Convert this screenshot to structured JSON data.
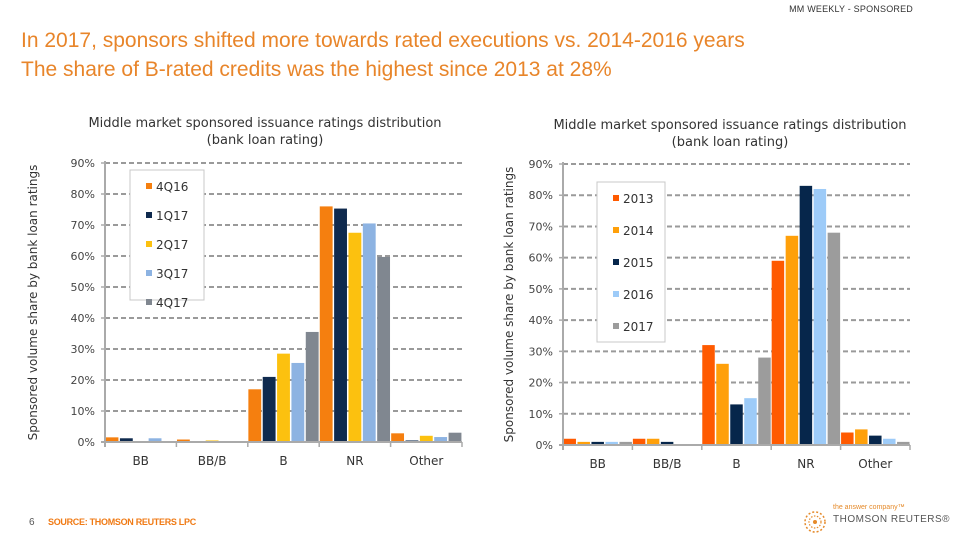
{
  "header": {
    "tag": "MM WEEKLY - SPONSORED",
    "headline_line1": "In 2017, sponsors shifted more towards rated executions vs. 2014-2016 years",
    "headline_line2": "The share of B-rated credits was the highest since 2013 at 28%"
  },
  "footer": {
    "page_number": "6",
    "source": "SOURCE: THOMSON REUTERS LPC",
    "brand_tagline": "the answer company™",
    "brand_name": "THOMSON REUTERS®"
  },
  "chart_data": [
    {
      "type": "bar",
      "title": "Middle market sponsored issuance ratings distribution",
      "subtitle": "(bank loan rating)",
      "xlabel": "",
      "ylabel": "Sponsored volume share by bank loan ratings",
      "ylim": [
        0,
        90
      ],
      "yticks": [
        "0%",
        "10%",
        "20%",
        "30%",
        "40%",
        "50%",
        "60%",
        "70%",
        "80%",
        "90%"
      ],
      "grid": true,
      "legend_position": "top-left",
      "categories": [
        "BB",
        "BB/B",
        "B",
        "NR",
        "Other"
      ],
      "series": [
        {
          "name": "4Q16",
          "color": "#f57f0f",
          "values": [
            1.5,
            0.8,
            17.0,
            76.0,
            2.8
          ]
        },
        {
          "name": "1Q17",
          "color": "#0f2a4e",
          "values": [
            1.2,
            0.0,
            21.0,
            75.3,
            0.5
          ]
        },
        {
          "name": "2Q17",
          "color": "#fcc10f",
          "values": [
            0.0,
            0.5,
            28.5,
            67.5,
            2.0
          ]
        },
        {
          "name": "3Q17",
          "color": "#8db3e2",
          "values": [
            1.2,
            0.0,
            25.5,
            70.5,
            1.6
          ]
        },
        {
          "name": "4Q17",
          "color": "#808790",
          "values": [
            0.0,
            0.0,
            35.5,
            59.7,
            3.0
          ]
        }
      ]
    },
    {
      "type": "bar",
      "title": "Middle market sponsored issuance ratings distribution",
      "subtitle": "(bank loan rating)",
      "xlabel": "",
      "ylabel": "Sponsored volume share by bank loan ratings",
      "ylim": [
        0,
        90
      ],
      "yticks": [
        "0%",
        "10%",
        "20%",
        "30%",
        "40%",
        "50%",
        "60%",
        "70%",
        "80%",
        "90%"
      ],
      "grid": true,
      "legend_position": "top-left",
      "categories": [
        "BB",
        "BB/B",
        "B",
        "NR",
        "Other"
      ],
      "series": [
        {
          "name": "2013",
          "color": "#ff5a00",
          "values": [
            2,
            2,
            32,
            59,
            4
          ]
        },
        {
          "name": "2014",
          "color": "#ffa00a",
          "values": [
            1,
            2,
            26,
            67,
            5
          ]
        },
        {
          "name": "2015",
          "color": "#06264b",
          "values": [
            1,
            1,
            13,
            83,
            3
          ]
        },
        {
          "name": "2016",
          "color": "#9dcbf8",
          "values": [
            1,
            0,
            15,
            82,
            2
          ]
        },
        {
          "name": "2017",
          "color": "#9c9c9c",
          "values": [
            1,
            0,
            28,
            68,
            1
          ]
        }
      ]
    }
  ]
}
